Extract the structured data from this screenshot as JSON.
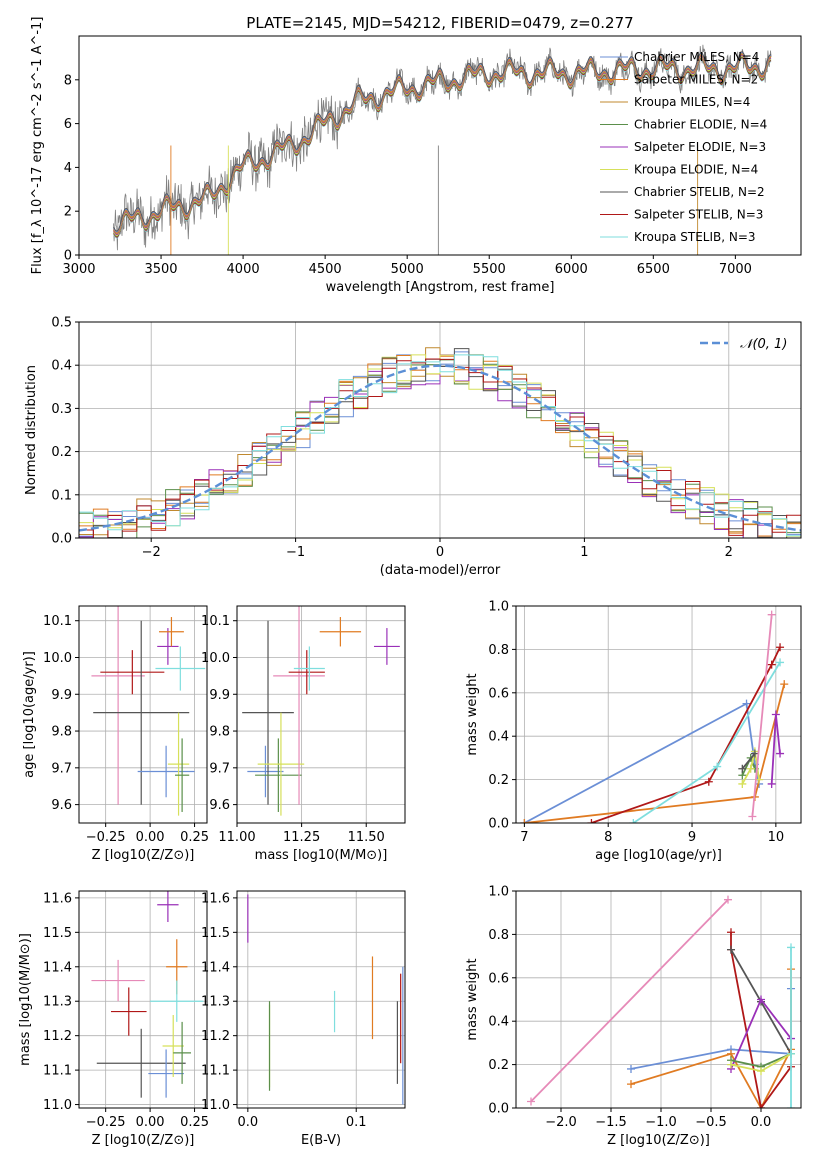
{
  "figure": {
    "title": "PLATE=2145, MJD=54212, FIBERID=0479, z=0.277",
    "colors": {
      "chabrier_miles": "#6b8fd6",
      "salpeter_miles": "#e07b22",
      "kroupa_miles": "#c0892f",
      "chabrier_elodie": "#5b8f4b",
      "salpeter_elodie": "#9a30b8",
      "kroupa_elodie": "#d6e05a",
      "chabrier_stelib": "#555555",
      "salpeter_stelib": "#b01818",
      "kroupa_stelib": "#7fdede",
      "pink": "#e68ab8",
      "data": "#808080",
      "grid": "#b0b0b0"
    }
  },
  "chart_data": [
    {
      "id": "spectrum",
      "type": "line",
      "xlabel": "wavelength [Angstrom, rest frame]",
      "ylabel": "Flux [f_λ 10^-17 erg cm^-2 s^-1 A^-1]",
      "xlim": [
        3000,
        7400
      ],
      "ylim": [
        0,
        10
      ],
      "xticks": [
        3000,
        3500,
        4000,
        4500,
        5000,
        5500,
        6000,
        6500,
        7000
      ],
      "yticks": [
        0,
        2,
        4,
        6,
        8
      ],
      "legend_loc": "upper right",
      "legend": [
        {
          "label": "Chabrier MILES, N_SSP=4",
          "color_key": "chabrier_miles"
        },
        {
          "label": "Salpeter MILES, N_SSP=2",
          "color_key": "salpeter_miles"
        },
        {
          "label": "Kroupa MILES, N_SSP=4",
          "color_key": "kroupa_miles"
        },
        {
          "label": "Chabrier ELODIE, N_SSP=4",
          "color_key": "chabrier_elodie"
        },
        {
          "label": "Salpeter ELODIE, N_SSP=3",
          "color_key": "salpeter_elodie"
        },
        {
          "label": "Kroupa ELODIE, N_SSP=4",
          "color_key": "kroupa_elodie"
        },
        {
          "label": "Chabrier STELIB, N_SSP=2",
          "color_key": "chabrier_stelib"
        },
        {
          "label": "Salpeter STELIB, N_SSP=3",
          "color_key": "salpeter_stelib"
        },
        {
          "label": "Kroupa STELIB, N_SSP=3",
          "color_key": "kroupa_stelib"
        }
      ],
      "continuum": {
        "x": [
          3210,
          3500,
          3800,
          3900,
          4000,
          4300,
          4500,
          4700,
          5000,
          5500,
          6000,
          6500,
          7000,
          7200
        ],
        "y": [
          1.3,
          2.0,
          2.6,
          3.4,
          4.0,
          5.0,
          6.0,
          7.0,
          7.6,
          8.3,
          8.3,
          8.5,
          8.5,
          8.7
        ]
      },
      "data_range": [
        3210,
        7220
      ]
    },
    {
      "id": "residuals",
      "type": "histogram",
      "xlabel": "(data-model)/error",
      "ylabel": "Normed distribution",
      "xlim": [
        -2.5,
        2.5
      ],
      "ylim": [
        0,
        0.5
      ],
      "xticks": [
        -2,
        -1,
        0,
        1,
        2
      ],
      "yticks": [
        0.0,
        0.1,
        0.2,
        0.3,
        0.4,
        0.5
      ],
      "bin_width": 0.1,
      "legend": [
        {
          "label": "𝒩(0, 1)",
          "style": "dashed",
          "color": "#5b8fd6"
        }
      ]
    },
    {
      "id": "age_vs_Z",
      "type": "errorbar",
      "xlabel": "Z [log10(Z/Z⊙)]",
      "ylabel": "age [log10(age/yr)]",
      "xlim": [
        -0.4,
        0.32
      ],
      "ylim": [
        9.55,
        10.14
      ],
      "xticks": [
        -0.25,
        0.0,
        0.25
      ],
      "yticks": [
        9.6,
        9.7,
        9.8,
        9.9,
        10.0,
        10.1
      ],
      "points": [
        {
          "c": "pink",
          "x": -0.18,
          "xerr": 0.15,
          "y": 9.95,
          "yerr": 0.35
        },
        {
          "c": "salpeter_stelib",
          "x": -0.1,
          "xerr": 0.18,
          "y": 9.96,
          "yerr": 0.06
        },
        {
          "c": "chabrier_stelib",
          "x": -0.05,
          "xerr": 0.27,
          "y": 9.85,
          "yerr": 0.25
        },
        {
          "c": "chabrier_miles",
          "x": 0.09,
          "xerr": 0.16,
          "y": 9.69,
          "yerr": 0.07
        },
        {
          "c": "salpeter_elodie",
          "x": 0.1,
          "xerr": 0.06,
          "y": 10.03,
          "yerr": 0.05
        },
        {
          "c": "salpeter_miles",
          "x": 0.12,
          "xerr": 0.07,
          "y": 10.07,
          "yerr": 0.04
        },
        {
          "c": "kroupa_elodie",
          "x": 0.16,
          "xerr": 0.06,
          "y": 9.71,
          "yerr": 0.14
        },
        {
          "c": "chabrier_elodie",
          "x": 0.18,
          "xerr": 0.04,
          "y": 9.68,
          "yerr": 0.1
        },
        {
          "c": "kroupa_stelib",
          "x": 0.17,
          "xerr": 0.14,
          "y": 9.97,
          "yerr": 0.06
        }
      ]
    },
    {
      "id": "age_vs_mass",
      "type": "errorbar",
      "xlabel": "mass [log10(M/M⊙)]",
      "ylabel": "",
      "xlim": [
        11.0,
        11.65
      ],
      "ylim": [
        9.55,
        10.14
      ],
      "xticks": [
        11.0,
        11.25,
        11.5
      ],
      "yticks": [
        9.6,
        9.7,
        9.8,
        9.9,
        10.0,
        10.1
      ],
      "points": [
        {
          "c": "chabrier_miles",
          "x": 11.11,
          "xerr": 0.07,
          "y": 9.69,
          "yerr": 0.07
        },
        {
          "c": "chabrier_stelib",
          "x": 11.12,
          "xerr": 0.1,
          "y": 9.85,
          "yerr": 0.25
        },
        {
          "c": "chabrier_elodie",
          "x": 11.16,
          "xerr": 0.09,
          "y": 9.68,
          "yerr": 0.1
        },
        {
          "c": "kroupa_elodie",
          "x": 11.17,
          "xerr": 0.09,
          "y": 9.71,
          "yerr": 0.14
        },
        {
          "c": "pink",
          "x": 11.24,
          "xerr": 0.1,
          "y": 9.95,
          "yerr": 0.35
        },
        {
          "c": "salpeter_stelib",
          "x": 11.27,
          "xerr": 0.07,
          "y": 9.96,
          "yerr": 0.06
        },
        {
          "c": "kroupa_stelib",
          "x": 11.28,
          "xerr": 0.06,
          "y": 9.97,
          "yerr": 0.06
        },
        {
          "c": "salpeter_miles",
          "x": 11.4,
          "xerr": 0.08,
          "y": 10.07,
          "yerr": 0.04
        },
        {
          "c": "salpeter_elodie",
          "x": 11.58,
          "xerr": 0.05,
          "y": 10.03,
          "yerr": 0.05
        }
      ]
    },
    {
      "id": "weight_vs_age",
      "type": "line",
      "xlabel": "age [log10(age/yr)]",
      "ylabel": "mass weight",
      "xlim": [
        6.9,
        10.3
      ],
      "ylim": [
        0,
        1.0
      ],
      "xticks": [
        7,
        8,
        9,
        10
      ],
      "yticks": [
        0.0,
        0.2,
        0.4,
        0.6,
        0.8,
        1.0
      ],
      "series": [
        {
          "c": "chabrier_miles",
          "x": [
            7.0,
            9.65,
            9.75,
            9.8
          ],
          "y": [
            0.0,
            0.55,
            0.27,
            0.18
          ]
        },
        {
          "c": "salpeter_miles",
          "x": [
            7.0,
            9.75,
            10.1
          ],
          "y": [
            0.0,
            0.12,
            0.64
          ]
        },
        {
          "c": "salpeter_stelib",
          "x": [
            7.8,
            9.2,
            9.95,
            10.05
          ],
          "y": [
            0.0,
            0.19,
            0.73,
            0.81
          ]
        },
        {
          "c": "kroupa_stelib",
          "x": [
            8.3,
            9.3,
            10.05
          ],
          "y": [
            0.0,
            0.26,
            0.74
          ]
        },
        {
          "c": "chabrier_elodie",
          "x": [
            9.6,
            9.7,
            9.75
          ],
          "y": [
            0.22,
            0.3,
            0.25
          ]
        },
        {
          "c": "kroupa_elodie",
          "x": [
            9.6,
            9.7,
            9.75,
            9.8
          ],
          "y": [
            0.18,
            0.25,
            0.33,
            0.2
          ]
        },
        {
          "c": "chabrier_stelib",
          "x": [
            9.6,
            9.75
          ],
          "y": [
            0.25,
            0.32
          ]
        },
        {
          "c": "salpeter_elodie",
          "x": [
            9.95,
            10.0,
            10.05
          ],
          "y": [
            0.18,
            0.5,
            0.32
          ]
        },
        {
          "c": "pink",
          "x": [
            9.72,
            9.95
          ],
          "y": [
            0.03,
            0.96
          ]
        }
      ]
    },
    {
      "id": "mass_vs_Z",
      "type": "errorbar",
      "xlabel": "Z [log10(Z/Z⊙)]",
      "ylabel": "mass [log10(M/M⊙)]",
      "xlim": [
        -0.4,
        0.32
      ],
      "ylim": [
        10.99,
        11.62
      ],
      "xticks": [
        -0.25,
        0.0,
        0.25
      ],
      "yticks": [
        11.0,
        11.1,
        11.2,
        11.3,
        11.4,
        11.5,
        11.6
      ],
      "points": [
        {
          "c": "pink",
          "x": -0.18,
          "xerr": 0.15,
          "y": 11.36,
          "yerr": 0.06
        },
        {
          "c": "salpeter_stelib",
          "x": -0.12,
          "xerr": 0.1,
          "y": 11.27,
          "yerr": 0.07
        },
        {
          "c": "chabrier_stelib",
          "x": -0.05,
          "xerr": 0.25,
          "y": 11.12,
          "yerr": 0.1
        },
        {
          "c": "chabrier_miles",
          "x": 0.09,
          "xerr": 0.1,
          "y": 11.09,
          "yerr": 0.07
        },
        {
          "c": "salpeter_elodie",
          "x": 0.1,
          "xerr": 0.06,
          "y": 11.58,
          "yerr": 0.05
        },
        {
          "c": "salpeter_miles",
          "x": 0.15,
          "xerr": 0.06,
          "y": 11.4,
          "yerr": 0.08
        },
        {
          "c": "kroupa_elodie",
          "x": 0.13,
          "xerr": 0.06,
          "y": 11.17,
          "yerr": 0.09
        },
        {
          "c": "chabrier_elodie",
          "x": 0.18,
          "xerr": 0.05,
          "y": 11.15,
          "yerr": 0.09
        },
        {
          "c": "kroupa_stelib",
          "x": 0.15,
          "xerr": 0.15,
          "y": 11.3,
          "yerr": 0.06
        }
      ]
    },
    {
      "id": "mass_vs_ebv",
      "type": "errorbar",
      "xlabel": "E(B-V)",
      "ylabel": "",
      "xlim": [
        -0.01,
        0.145
      ],
      "ylim": [
        10.99,
        11.62
      ],
      "xticks": [
        0.0,
        0.1
      ],
      "yticks": [
        11.0,
        11.1,
        11.2,
        11.3,
        11.4,
        11.5,
        11.6
      ],
      "points": [
        {
          "c": "salpeter_elodie",
          "x": 0.0,
          "xerr": 0,
          "y": 11.54,
          "yerr": 0.07
        },
        {
          "c": "kroupa_elodie",
          "x": 0.02,
          "xerr": 0,
          "y": 11.17,
          "yerr": 0.12
        },
        {
          "c": "chabrier_elodie",
          "x": 0.02,
          "xerr": 0,
          "y": 11.17,
          "yerr": 0.13
        },
        {
          "c": "kroupa_stelib",
          "x": 0.08,
          "xerr": 0,
          "y": 11.27,
          "yerr": 0.06
        },
        {
          "c": "salpeter_miles",
          "x": 0.115,
          "xerr": 0,
          "y": 11.31,
          "yerr": 0.12
        },
        {
          "c": "chabrier_stelib",
          "x": 0.138,
          "xerr": 0,
          "y": 11.18,
          "yerr": 0.12
        },
        {
          "c": "salpeter_stelib",
          "x": 0.141,
          "xerr": 0,
          "y": 11.25,
          "yerr": 0.13
        },
        {
          "c": "chabrier_miles",
          "x": 0.143,
          "xerr": 0,
          "y": 11.2,
          "yerr": 0.2
        }
      ]
    },
    {
      "id": "weight_vs_Z",
      "type": "line",
      "xlabel": "Z [log10(Z/Z⊙)]",
      "ylabel": "mass weight",
      "xlim": [
        -2.45,
        0.4
      ],
      "ylim": [
        0,
        1.0
      ],
      "xticks": [
        -2.0,
        -1.5,
        -1.0,
        -0.5,
        0.0
      ],
      "yticks": [
        0.0,
        0.2,
        0.4,
        0.6,
        0.8,
        1.0
      ],
      "series": [
        {
          "c": "pink",
          "x": [
            -2.3,
            -0.33
          ],
          "y": [
            0.03,
            0.96
          ]
        },
        {
          "c": "chabrier_miles",
          "x": [
            -1.3,
            -0.3,
            0.3,
            0.3
          ],
          "y": [
            0.18,
            0.27,
            0.25,
            0.55
          ]
        },
        {
          "c": "salpeter_miles",
          "x": [
            -1.3,
            -0.3,
            0.0,
            0.3,
            0.3
          ],
          "y": [
            0.11,
            0.25,
            0.0,
            0.27,
            0.64
          ]
        },
        {
          "c": "salpeter_stelib",
          "x": [
            -0.3,
            -0.3,
            0.0,
            0.3
          ],
          "y": [
            0.81,
            0.73,
            0.0,
            0.19
          ]
        },
        {
          "c": "chabrier_stelib",
          "x": [
            -0.3,
            0.0,
            0.3
          ],
          "y": [
            0.73,
            0.49,
            0.25
          ]
        },
        {
          "c": "salpeter_elodie",
          "x": [
            -0.3,
            0.0,
            0.3
          ],
          "y": [
            0.18,
            0.5,
            0.32
          ]
        },
        {
          "c": "chabrier_elodie",
          "x": [
            -0.3,
            0.0,
            0.3
          ],
          "y": [
            0.22,
            0.19,
            0.25
          ]
        },
        {
          "c": "kroupa_elodie",
          "x": [
            -0.3,
            0.0,
            0.3
          ],
          "y": [
            0.2,
            0.17,
            0.25
          ]
        },
        {
          "c": "kroupa_stelib",
          "x": [
            0.3,
            0.3,
            0.3
          ],
          "y": [
            0.0,
            0.74,
            0.25
          ]
        }
      ]
    }
  ]
}
